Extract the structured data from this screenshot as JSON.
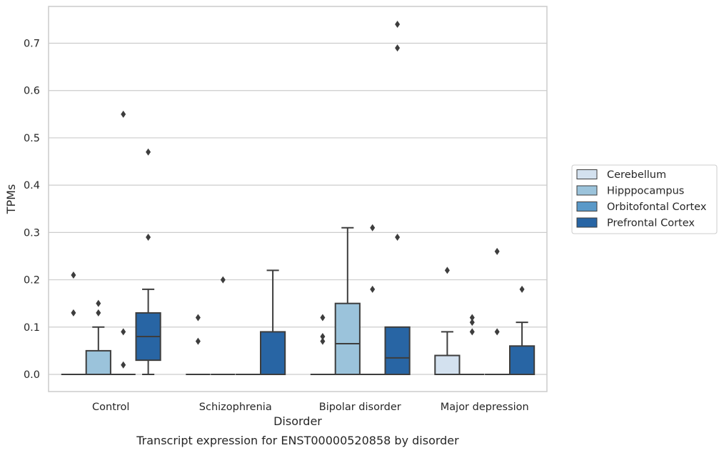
{
  "chart_data": {
    "type": "box",
    "caption": "Transcript expression for ENST00000520858 by disorder",
    "xlabel": "Disorder",
    "ylabel": "TPMs",
    "ylim": [
      -0.036,
      0.78
    ],
    "yticks": [
      "0.0",
      "0.1",
      "0.2",
      "0.3",
      "0.4",
      "0.5",
      "0.6",
      "0.7"
    ],
    "ytick_values": [
      0.0,
      0.1,
      0.2,
      0.3,
      0.4,
      0.5,
      0.6,
      0.7
    ],
    "categories": [
      "Control",
      "Schizophrenia",
      "Bipolar disorder",
      "Major depression"
    ],
    "grid": "horizontal",
    "legend_position": "right",
    "series": [
      {
        "name": "Cerebellum",
        "color": "#d3e1ef",
        "boxes": [
          {
            "q1": 0,
            "median": 0,
            "q3": 0,
            "whislo": 0,
            "whishi": 0,
            "fliers": [
              0.21,
              0.13
            ]
          },
          {
            "q1": 0,
            "median": 0,
            "q3": 0,
            "whislo": 0,
            "whishi": 0,
            "fliers": [
              0.12,
              0.07
            ]
          },
          {
            "q1": 0,
            "median": 0,
            "q3": 0,
            "whislo": 0,
            "whishi": 0,
            "fliers": [
              0.12,
              0.08,
              0.07
            ]
          },
          {
            "q1": 0,
            "median": 0,
            "q3": 0.04,
            "whislo": 0,
            "whishi": 0.09,
            "fliers": [
              0.22
            ]
          }
        ]
      },
      {
        "name": "Hipppocampus",
        "color": "#9bc3db",
        "boxes": [
          {
            "q1": 0,
            "median": 0,
            "q3": 0.05,
            "whislo": 0,
            "whishi": 0.1,
            "fliers": [
              0.15,
              0.13
            ]
          },
          {
            "q1": 0,
            "median": 0,
            "q3": 0,
            "whislo": 0,
            "whishi": 0,
            "fliers": [
              0.2
            ]
          },
          {
            "q1": 0,
            "median": 0.065,
            "q3": 0.15,
            "whislo": 0,
            "whishi": 0.31,
            "fliers": []
          },
          {
            "q1": 0,
            "median": 0,
            "q3": 0,
            "whislo": 0,
            "whishi": 0,
            "fliers": [
              0.12,
              0.11,
              0.09
            ]
          }
        ]
      },
      {
        "name": "Orbitofontal Cortex",
        "color": "#5a99c8",
        "boxes": [
          {
            "q1": 0,
            "median": 0,
            "q3": 0,
            "whislo": 0,
            "whishi": 0,
            "fliers": [
              0.55,
              0.09,
              0.02
            ]
          },
          {
            "q1": 0,
            "median": 0,
            "q3": 0,
            "whislo": 0,
            "whishi": 0,
            "fliers": []
          },
          {
            "q1": 0,
            "median": 0,
            "q3": 0,
            "whislo": 0,
            "whishi": 0,
            "fliers": [
              0.31,
              0.18
            ]
          },
          {
            "q1": 0,
            "median": 0,
            "q3": 0,
            "whislo": 0,
            "whishi": 0,
            "fliers": [
              0.26,
              0.09
            ]
          }
        ]
      },
      {
        "name": "Prefrontal Cortex",
        "color": "#2865a4",
        "boxes": [
          {
            "q1": 0.03,
            "median": 0.08,
            "q3": 0.13,
            "whislo": 0,
            "whishi": 0.18,
            "fliers": [
              0.47,
              0.29
            ]
          },
          {
            "q1": 0,
            "median": 0,
            "q3": 0.09,
            "whislo": 0,
            "whishi": 0.22,
            "fliers": []
          },
          {
            "q1": 0,
            "median": 0.035,
            "q3": 0.1,
            "whislo": 0,
            "whishi": 0.1,
            "fliers": [
              0.74,
              0.69,
              0.29
            ]
          },
          {
            "q1": 0,
            "median": 0,
            "q3": 0.06,
            "whislo": 0,
            "whishi": 0.11,
            "fliers": [
              0.18
            ]
          }
        ]
      }
    ]
  }
}
